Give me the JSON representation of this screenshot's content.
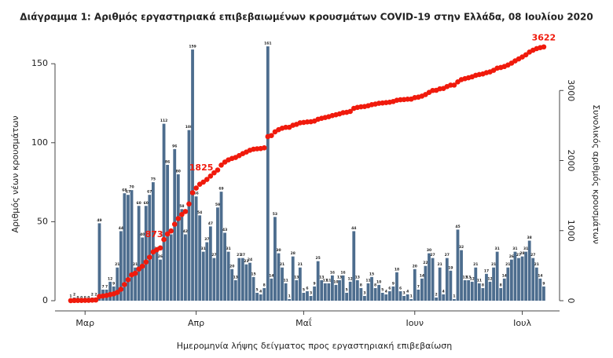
{
  "chart_data": {
    "type": "bar",
    "title": "Διάγραμμα 1: Αριθμός εργαστηριακά επιβεβαιωμένων κρουσμάτων COVID-19 στην Ελλάδα, 08 Ιουλίου 2020",
    "x_label": "Ημερομηνία λήψης δείγματος προς εργαστηριακή επιβεβαίωση",
    "y_label": "Αριθμός νέων κρουσμάτων",
    "y2_label": "Συνολικός αριθμός κρουσμάτων",
    "categories": [
      null,
      null,
      null,
      null,
      "Μαρ",
      null,
      null,
      null,
      null,
      null,
      null,
      null,
      null,
      null,
      null,
      null,
      null,
      null,
      null,
      null,
      null,
      null,
      null,
      null,
      null,
      null,
      null,
      null,
      null,
      null,
      null,
      null,
      null,
      null,
      null,
      "Απρ",
      null,
      null,
      null,
      null,
      null,
      null,
      null,
      null,
      null,
      null,
      null,
      null,
      null,
      null,
      null,
      null,
      null,
      null,
      null,
      null,
      null,
      null,
      null,
      null,
      null,
      null,
      null,
      null,
      null,
      "Μαΐ",
      null,
      null,
      null,
      null,
      null,
      null,
      null,
      null,
      null,
      null,
      null,
      null,
      null,
      null,
      null,
      null,
      null,
      null,
      null,
      null,
      null,
      null,
      null,
      null,
      null,
      null,
      null,
      null,
      null,
      null,
      "Ιουν",
      null,
      null,
      null,
      null,
      null,
      null,
      null,
      null,
      null,
      null,
      null,
      null,
      null,
      null,
      null,
      null,
      null,
      null,
      null,
      null,
      null,
      null,
      null,
      null,
      null,
      null,
      null,
      null,
      null,
      "Ιουλ",
      null,
      null,
      null,
      null,
      null,
      null
    ],
    "series": [
      {
        "color": "#4d6d8e",
        "values": [
          1,
          2,
          0,
          0,
          0,
          0,
          2,
          2,
          49,
          7,
          7,
          12,
          9,
          21,
          44,
          68,
          67,
          70,
          21,
          60,
          40,
          60,
          67,
          75,
          31,
          26,
          112,
          86,
          42,
          96,
          80,
          58,
          42,
          108,
          159,
          66,
          54,
          31,
          37,
          47,
          27,
          59,
          69,
          43,
          31,
          20,
          13,
          27,
          27,
          23,
          24,
          15,
          5,
          4,
          8,
          161,
          14,
          53,
          30,
          21,
          11,
          1,
          28,
          13,
          21,
          5,
          6,
          3,
          9,
          25,
          13,
          11,
          11,
          16,
          10,
          13,
          16,
          5,
          12,
          44,
          13,
          8,
          3,
          11,
          15,
          8,
          10,
          5,
          4,
          6,
          9,
          18,
          6,
          3,
          4,
          1,
          20,
          7,
          14,
          22,
          30,
          27,
          2,
          21,
          4,
          27,
          19,
          1,
          45,
          32,
          13,
          13,
          12,
          21,
          11,
          8,
          17,
          12,
          21,
          31,
          8,
          14,
          21,
          26,
          31,
          27,
          28,
          31,
          38,
          27,
          21,
          14,
          9
        ]
      },
      {
        "type": "line",
        "axis": "y2",
        "color": "#f01a0c",
        "values": [
          1,
          3,
          4,
          4,
          5,
          5,
          8,
          10,
          60,
          67,
          75,
          87,
          97,
          118,
          163,
          231,
          299,
          369,
          391,
          451,
          492,
          552,
          620,
          695,
          727,
          753,
          873,
          952,
          995,
          1091,
          1172,
          1230,
          1273,
          1381,
          1541,
          1607,
          1662,
          1693,
          1731,
          1778,
          1825,
          1865,
          1935,
          1978,
          2010,
          2030,
          2044,
          2071,
          2099,
          2122,
          2147,
          2162,
          2168,
          2172,
          2181,
          2342,
          2357,
          2410,
          2441,
          2462,
          2474,
          2475,
          2504,
          2517,
          2539,
          2544,
          2551,
          2554,
          2564,
          2589,
          2603,
          2614,
          2626,
          2642,
          2653,
          2666,
          2683,
          2688,
          2701,
          2745,
          2759,
          2767,
          2771,
          2782,
          2798,
          2806,
          2817,
          2822,
          2827,
          2833,
          2843,
          2861,
          2868,
          2871,
          2876,
          2877,
          2898,
          2905,
          2920,
          2942,
          2973,
          3000,
          3003,
          3024,
          3029,
          3056,
          3076,
          3077,
          3123,
          3155,
          3169,
          3182,
          3195,
          3216,
          3228,
          3236,
          3254,
          3266,
          3288,
          3319,
          3328,
          3342,
          3364,
          3390,
          3422,
          3450,
          3478,
          3509,
          3548,
          3575,
          3597,
          3611,
          3622
        ],
        "value_labels": [
          null,
          null,
          null,
          null,
          null,
          null,
          null,
          null,
          null,
          null,
          null,
          null,
          null,
          null,
          null,
          null,
          null,
          null,
          null,
          null,
          null,
          null,
          null,
          null,
          null,
          null,
          "873",
          null,
          null,
          null,
          null,
          null,
          null,
          null,
          null,
          null,
          null,
          null,
          null,
          null,
          "1825",
          null,
          null,
          null,
          null,
          null,
          null,
          null,
          null,
          null,
          null,
          null,
          null,
          null,
          null,
          null,
          null,
          null,
          null,
          null,
          null,
          null,
          null,
          null,
          null,
          null,
          null,
          null,
          null,
          null,
          null,
          null,
          null,
          null,
          null,
          null,
          null,
          null,
          null,
          null,
          null,
          null,
          null,
          null,
          null,
          null,
          null,
          null,
          null,
          null,
          null,
          null,
          null,
          null,
          null,
          null,
          null,
          null,
          null,
          null,
          null,
          null,
          null,
          null,
          null,
          null,
          null,
          null,
          null,
          null,
          null,
          null,
          null,
          null,
          null,
          null,
          null,
          null,
          null,
          null,
          null,
          null,
          null,
          null,
          null,
          null,
          null,
          null,
          null,
          null,
          null,
          null,
          "3622"
        ]
      }
    ],
    "ylim": [
      0,
      165
    ],
    "yticks": [
      0,
      50,
      100,
      150
    ],
    "y2lim": [
      0,
      3720
    ],
    "y2ticks": [
      0,
      1000,
      2000,
      3000
    ]
  }
}
